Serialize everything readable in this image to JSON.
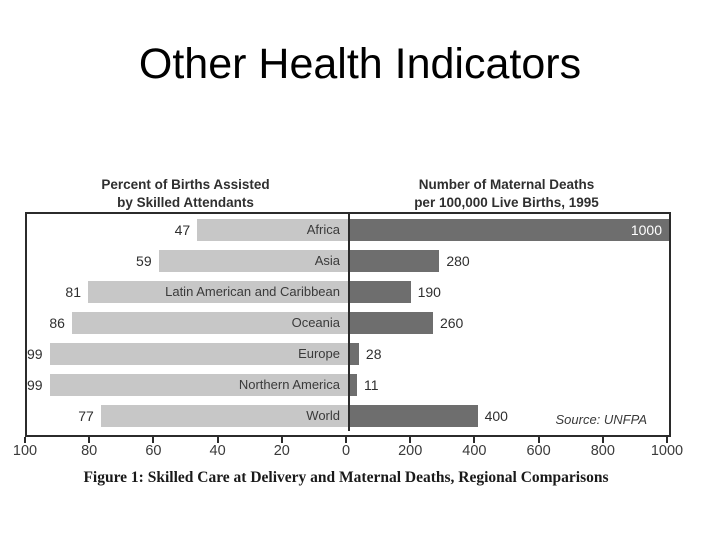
{
  "slide": {
    "title": "Other Health Indicators"
  },
  "figure": {
    "left_header_line1": "Percent of Births Assisted",
    "left_header_line2": "by Skilled Attendants",
    "right_header_line1": "Number of Maternal Deaths",
    "right_header_line2": "per 100,000 Live Births, 1995",
    "source": "Source: UNFPA",
    "caption": "Figure 1: Skilled Care at Delivery and Maternal Deaths, Regional Comparisons"
  },
  "chart_data": {
    "type": "bar",
    "orientation": "horizontal back-to-back (bilateral)",
    "categories": [
      "Africa",
      "Asia",
      "Latin American and Caribbean",
      "Oceania",
      "Europe",
      "Northern America",
      "World"
    ],
    "series": [
      {
        "name": "Percent of Births Assisted by Skilled Attendants",
        "side": "left",
        "values": [
          47,
          59,
          81,
          86,
          99,
          99,
          77
        ],
        "axis_range": [
          0,
          100
        ],
        "axis_ticks": [
          100,
          80,
          60,
          40,
          20,
          0
        ],
        "bar_color": "#c7c7c7"
      },
      {
        "name": "Number of Maternal Deaths per 100,000 Live Births, 1995",
        "side": "right",
        "values": [
          1000,
          280,
          190,
          260,
          28,
          11,
          400
        ],
        "axis_range": [
          0,
          1000
        ],
        "axis_ticks": [
          0,
          200,
          400,
          600,
          800,
          1000
        ],
        "bar_color": "#6e6e6e"
      }
    ],
    "grid": false,
    "legend": false,
    "source": "Source: UNFPA",
    "title": "Figure 1: Skilled Care at Delivery and Maternal Deaths, Regional Comparisons"
  },
  "colors": {
    "left_bar": "#c7c7c7",
    "right_bar": "#6e6e6e",
    "axis_line": "#2b2b2b",
    "figure_text": "#333333",
    "title_text": "#000000"
  }
}
